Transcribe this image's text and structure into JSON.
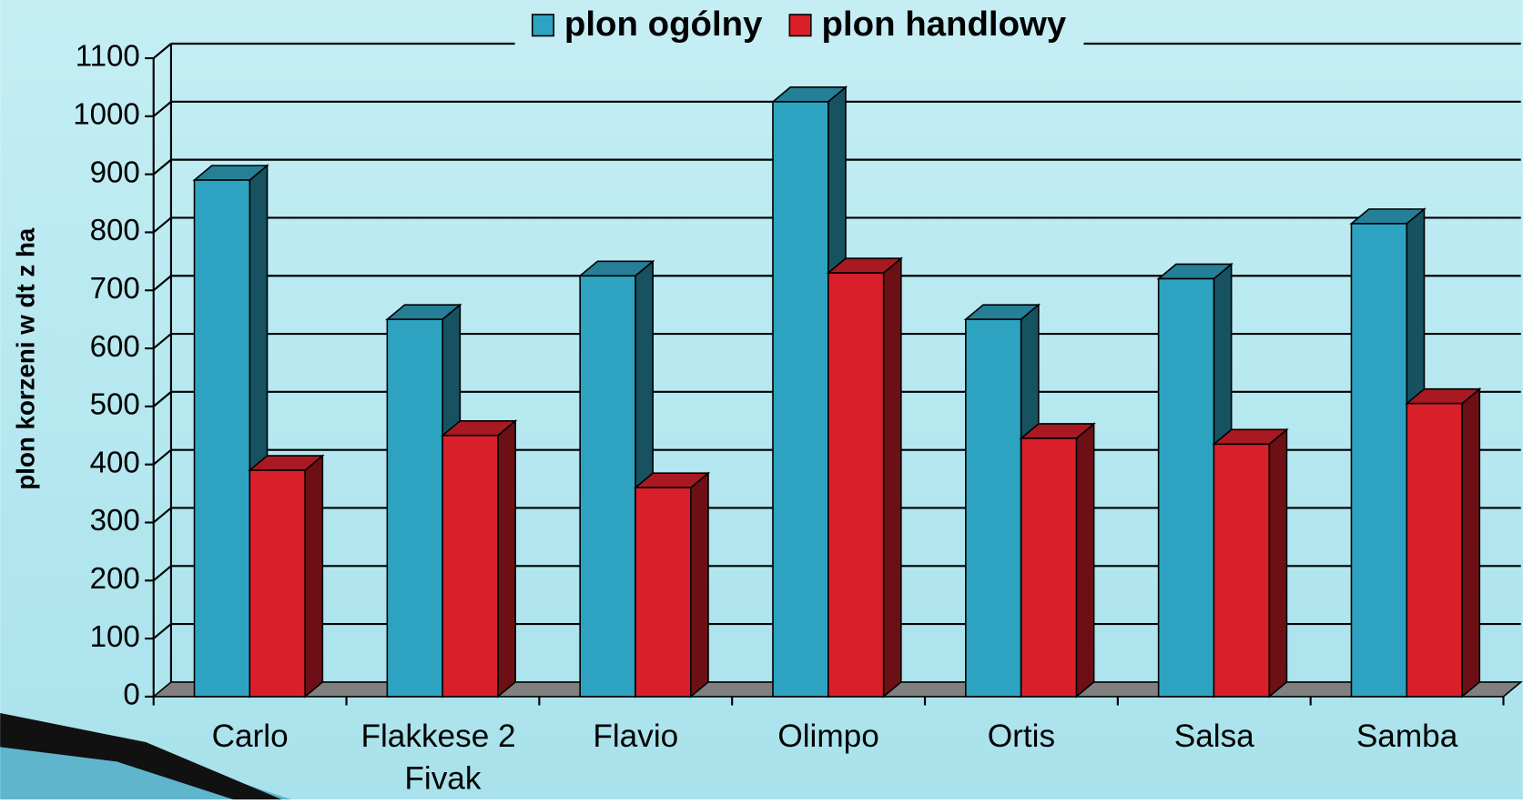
{
  "chart_data": {
    "type": "bar3d",
    "categories": [
      "Carlo",
      "Flakkese 2 Fivak",
      "Flavio",
      "Olimpo",
      "Ortis",
      "Salsa",
      "Samba"
    ],
    "series": [
      {
        "name": "plon ogólny",
        "color": "#2ea3c1",
        "values": [
          890,
          650,
          725,
          1025,
          650,
          720,
          815
        ]
      },
      {
        "name": "plon handlowy",
        "color": "#d9202a",
        "values": [
          390,
          450,
          360,
          730,
          445,
          435,
          505
        ]
      }
    ],
    "ylabel": "plon korzeni w dt z ha",
    "ylim": [
      0,
      1100
    ],
    "yticks": [
      0,
      100,
      200,
      300,
      400,
      500,
      600,
      700,
      800,
      900,
      1000,
      1100
    ],
    "grid": true,
    "legend": "top"
  }
}
